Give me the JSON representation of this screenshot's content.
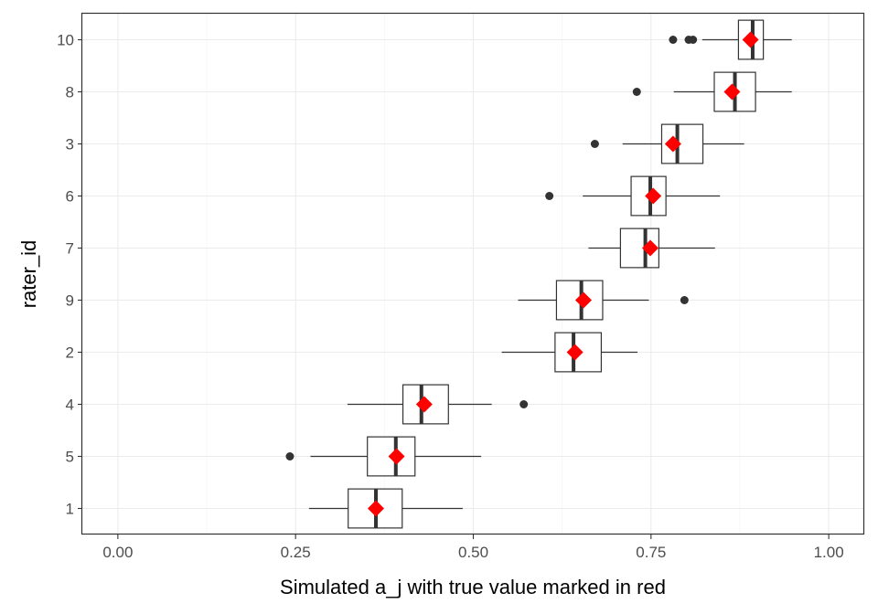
{
  "chart_data": {
    "type": "boxplot",
    "orientation": "horizontal",
    "xlabel": "Simulated a_j with true value marked in red",
    "ylabel": "rater_id",
    "xlim": [
      -0.05,
      1.05
    ],
    "x_ticks": [
      {
        "value": 0.0,
        "label": "0.00"
      },
      {
        "value": 0.25,
        "label": "0.25"
      },
      {
        "value": 0.5,
        "label": "0.50"
      },
      {
        "value": 0.75,
        "label": "0.75"
      },
      {
        "value": 1.0,
        "label": "1.00"
      }
    ],
    "x_minor_ticks": [
      0.125,
      0.375,
      0.625,
      0.875
    ],
    "grid": true,
    "colors": {
      "true_value": "#ff0000",
      "box": "#333333",
      "grid": "#ebebeb"
    },
    "categories": [
      "10",
      "8",
      "3",
      "6",
      "7",
      "9",
      "2",
      "4",
      "5",
      "1"
    ],
    "boxes": [
      {
        "rater_id": "10",
        "whisker_low": 0.822,
        "q1": 0.873,
        "median": 0.893,
        "q3": 0.908,
        "whisker_high": 0.948,
        "outliers": [
          0.781,
          0.803,
          0.809
        ],
        "true_value": 0.89
      },
      {
        "rater_id": "8",
        "whisker_low": 0.782,
        "q1": 0.839,
        "median": 0.868,
        "q3": 0.897,
        "whisker_high": 0.948,
        "outliers": [
          0.73
        ],
        "true_value": 0.864
      },
      {
        "rater_id": "3",
        "whisker_low": 0.71,
        "q1": 0.765,
        "median": 0.787,
        "q3": 0.823,
        "whisker_high": 0.881,
        "outliers": [
          0.671
        ],
        "true_value": 0.781
      },
      {
        "rater_id": "6",
        "whisker_low": 0.654,
        "q1": 0.722,
        "median": 0.749,
        "q3": 0.771,
        "whisker_high": 0.847,
        "outliers": [
          0.607
        ],
        "true_value": 0.753
      },
      {
        "rater_id": "7",
        "whisker_low": 0.662,
        "q1": 0.707,
        "median": 0.742,
        "q3": 0.761,
        "whisker_high": 0.84,
        "outliers": [],
        "true_value": 0.749
      },
      {
        "rater_id": "9",
        "whisker_low": 0.563,
        "q1": 0.617,
        "median": 0.652,
        "q3": 0.682,
        "whisker_high": 0.747,
        "outliers": [
          0.797
        ],
        "true_value": 0.655
      },
      {
        "rater_id": "2",
        "whisker_low": 0.54,
        "q1": 0.615,
        "median": 0.641,
        "q3": 0.68,
        "whisker_high": 0.731,
        "outliers": [],
        "true_value": 0.643
      },
      {
        "rater_id": "4",
        "whisker_low": 0.323,
        "q1": 0.401,
        "median": 0.427,
        "q3": 0.465,
        "whisker_high": 0.526,
        "outliers": [
          0.571
        ],
        "true_value": 0.431
      },
      {
        "rater_id": "5",
        "whisker_low": 0.271,
        "q1": 0.351,
        "median": 0.391,
        "q3": 0.418,
        "whisker_high": 0.511,
        "outliers": [
          0.242
        ],
        "true_value": 0.392
      },
      {
        "rater_id": "1",
        "whisker_low": 0.269,
        "q1": 0.324,
        "median": 0.363,
        "q3": 0.4,
        "whisker_high": 0.485,
        "outliers": [],
        "true_value": 0.363
      }
    ]
  }
}
